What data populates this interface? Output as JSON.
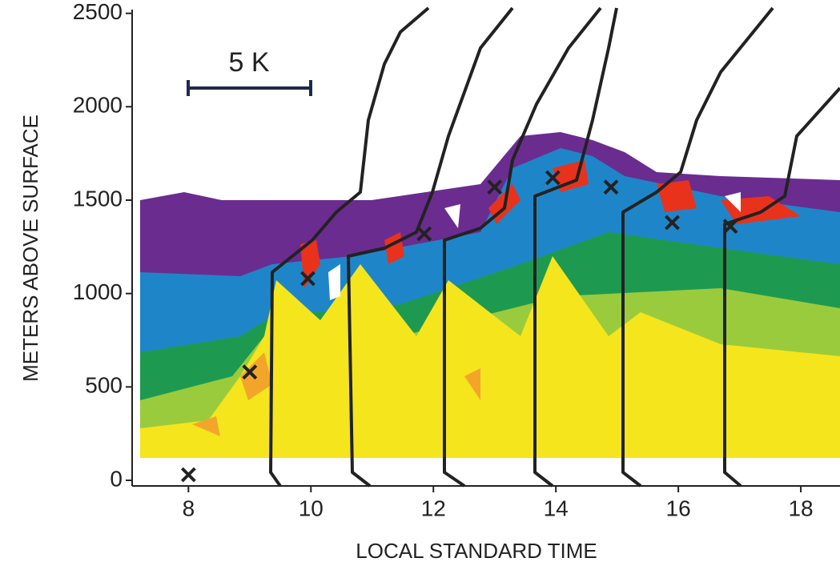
{
  "chart_data": {
    "type": "scatter",
    "x_label": "LOCAL STANDARD TIME",
    "y_label": "METERS ABOVE SURFACE",
    "annotation": "5 K",
    "x": [
      8,
      9.0,
      9.95,
      11.85,
      13.0,
      13.95,
      14.9,
      15.9,
      16.85
    ],
    "values": [
      30,
      580,
      1080,
      1320,
      1570,
      1620,
      1570,
      1380,
      1360
    ],
    "color": "#222222",
    "xlim": [
      7.08,
      18.64
    ],
    "ylim": [
      -30,
      2520
    ],
    "xticks": [
      8,
      10,
      12,
      14,
      16,
      18
    ],
    "yticks": [
      0,
      500,
      1000,
      1500,
      2000,
      2500
    ]
  }
}
